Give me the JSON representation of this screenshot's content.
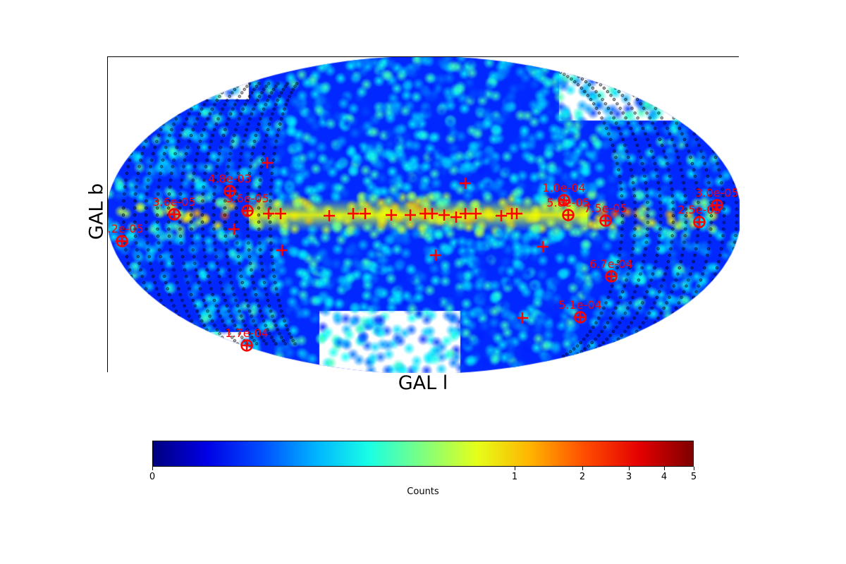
{
  "chart_data": {
    "type": "heatmap",
    "projection": "aitoff all-sky",
    "xlabel": "GAL l",
    "ylabel": "GAL b",
    "colorbar": {
      "label": "Counts",
      "colormap": "jet",
      "ticks": [
        "0",
        "1",
        "2",
        "3",
        "4",
        "5"
      ],
      "range": [
        0,
        5
      ]
    },
    "annotated_sources": [
      "3.2e-05",
      "3.6e-05",
      "4.8e-03",
      "3.6e-05",
      "1.0e-04",
      "5.8e-05",
      "7.5e-05",
      "3.0e-05",
      "2.5e-05",
      "6.7e-04",
      "5.1e-04",
      "1.7e-04"
    ],
    "marker_color": "#ff0000"
  }
}
